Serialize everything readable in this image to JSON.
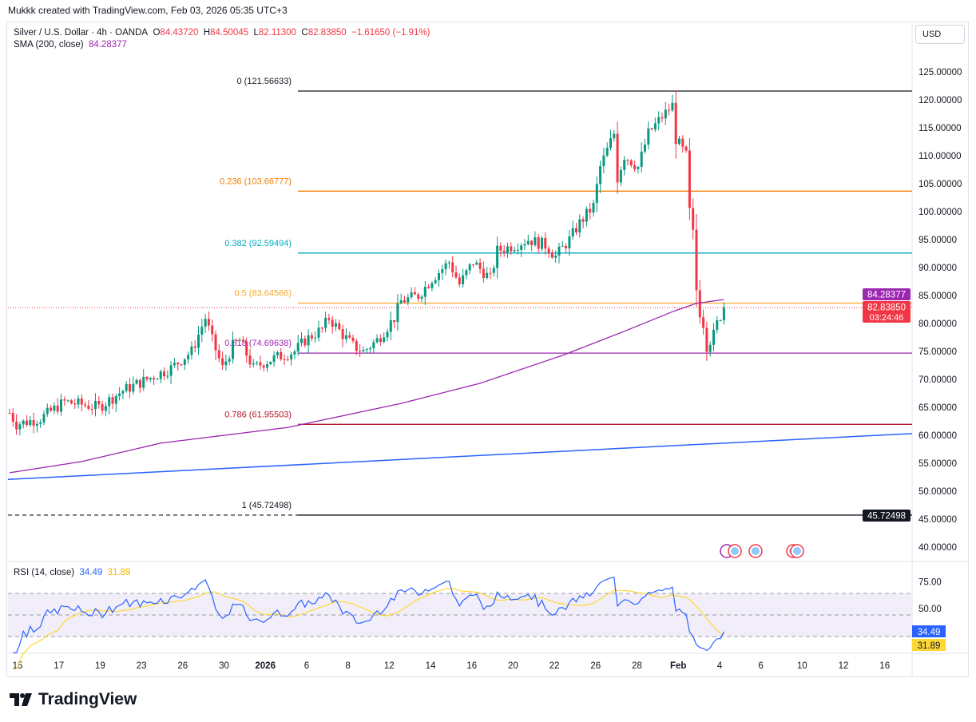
{
  "credit": "Mukkk created with TradingView.com, Feb 03, 2026 05:35 UTC+3",
  "legend": {
    "symbol": "Silver / U.S. Dollar · 4h · OANDA",
    "o_label": "O",
    "o": "84.43720",
    "h_label": "H",
    "h": "84.50045",
    "l_label": "L",
    "l": "82.11300",
    "c_label": "C",
    "c": "82.83850",
    "change": "−1.61650 (−1.91%)",
    "sma_label": "SMA (200, close)",
    "sma": "84.28377"
  },
  "currency": "USD",
  "rsi_legend": {
    "label": "RSI (14, close)",
    "rsi": "34.49",
    "ma": "31.89"
  },
  "logo": "TradingView",
  "colors": {
    "up": "#089981",
    "down": "#f23645",
    "sma": "#9c27b0",
    "trend": "#2962ff",
    "rsi": "#2962ff",
    "rsi_ma": "#fdd835"
  },
  "chart_data": {
    "type": "candlestick",
    "symbol": "XAGUSD",
    "timeframe": "4h",
    "y_range": [
      40,
      126
    ],
    "y_ticks": [
      "125.00000",
      "120.00000",
      "115.00000",
      "110.00000",
      "105.00000",
      "100.00000",
      "95.00000",
      "90.00000",
      "85.00000",
      "80.00000",
      "75.00000",
      "70.00000",
      "65.00000",
      "60.00000",
      "55.00000",
      "50.00000",
      "45.00000",
      "40.00000"
    ],
    "x_ticks": [
      "15",
      "17",
      "19",
      "23",
      "26",
      "30",
      "2026",
      "6",
      "8",
      "12",
      "14",
      "16",
      "20",
      "22",
      "26",
      "28",
      "Feb",
      "4",
      "6",
      "10",
      "12",
      "16"
    ],
    "close_keypoints": [
      [
        0,
        64
      ],
      [
        2,
        62
      ],
      [
        9,
        63
      ],
      [
        16,
        66
      ],
      [
        26,
        65
      ],
      [
        33,
        68
      ],
      [
        40,
        70
      ],
      [
        47,
        72
      ],
      [
        53,
        75
      ],
      [
        57,
        81
      ],
      [
        59,
        77
      ],
      [
        62,
        72
      ],
      [
        65,
        76
      ],
      [
        67,
        77
      ],
      [
        71,
        72
      ],
      [
        74,
        73
      ],
      [
        78,
        74
      ],
      [
        83,
        75
      ],
      [
        86,
        77
      ],
      [
        91,
        79
      ],
      [
        93,
        81
      ],
      [
        97,
        78
      ],
      [
        100,
        76
      ],
      [
        103,
        75
      ],
      [
        107,
        77
      ],
      [
        112,
        81
      ],
      [
        114,
        84
      ],
      [
        119,
        85
      ],
      [
        123,
        88
      ],
      [
        128,
        91
      ],
      [
        131,
        87
      ],
      [
        135,
        91
      ],
      [
        140,
        88
      ],
      [
        142,
        93
      ],
      [
        147,
        94
      ],
      [
        151,
        95
      ],
      [
        156,
        94
      ],
      [
        159,
        92
      ],
      [
        163,
        95
      ],
      [
        166,
        98
      ],
      [
        170,
        101
      ],
      [
        172,
        108
      ],
      [
        176,
        114
      ],
      [
        177,
        106
      ],
      [
        179,
        110
      ],
      [
        183,
        108
      ],
      [
        186,
        114
      ],
      [
        190,
        117
      ],
      [
        193,
        119
      ],
      [
        194,
        113
      ],
      [
        197,
        110
      ],
      [
        198,
        100
      ],
      [
        199,
        96
      ],
      [
        200,
        86
      ],
      [
        201,
        82
      ],
      [
        202,
        80
      ],
      [
        203,
        76
      ],
      [
        205,
        78
      ],
      [
        206,
        80
      ],
      [
        208,
        82.8385
      ]
    ],
    "sma_keypoints": [
      [
        0,
        53.3
      ],
      [
        21,
        55.3
      ],
      [
        44,
        58.6
      ],
      [
        81,
        61.4
      ],
      [
        114,
        65.7
      ],
      [
        137,
        69.3
      ],
      [
        161,
        74.3
      ],
      [
        179,
        78.6
      ],
      [
        193,
        82.1
      ],
      [
        200,
        83.6
      ],
      [
        208,
        84.28377
      ]
    ],
    "trendline": {
      "start": 52.1,
      "end": 60.3
    },
    "fib": [
      {
        "label": "0 (121.56633)",
        "price": 121.56633,
        "color": "#131722"
      },
      {
        "label": "0.236 (103.66777)",
        "price": 103.66777,
        "color": "#f57c00"
      },
      {
        "label": "0.382 (92.59494)",
        "price": 92.59494,
        "color": "#00acc1"
      },
      {
        "label": "0.5 (83.64566)",
        "price": 83.64566,
        "color": "#f9a825"
      },
      {
        "label": "0.618 (74.69638)",
        "price": 74.69638,
        "color": "#9c27b0"
      },
      {
        "label": "0.786 (61.95503)",
        "price": 61.95503,
        "color": "#b2182b"
      },
      {
        "label": "1 (45.72498)",
        "price": 45.72498,
        "color": "#131722"
      }
    ],
    "price_tags": [
      {
        "text": "84.28377",
        "price": 84.28377,
        "color": "#9c27b0"
      },
      {
        "text": "82.83850",
        "price": 82.8385,
        "color": "#f23645",
        "sub": "03:24:46"
      },
      {
        "text": "45.72498",
        "price": 45.72498,
        "color": "#131722"
      }
    ],
    "rsi": {
      "y_ticks": [
        "75.00",
        "50.00"
      ],
      "bands": [
        70,
        50,
        30
      ],
      "current": 34.49,
      "ma": 31.89
    }
  }
}
